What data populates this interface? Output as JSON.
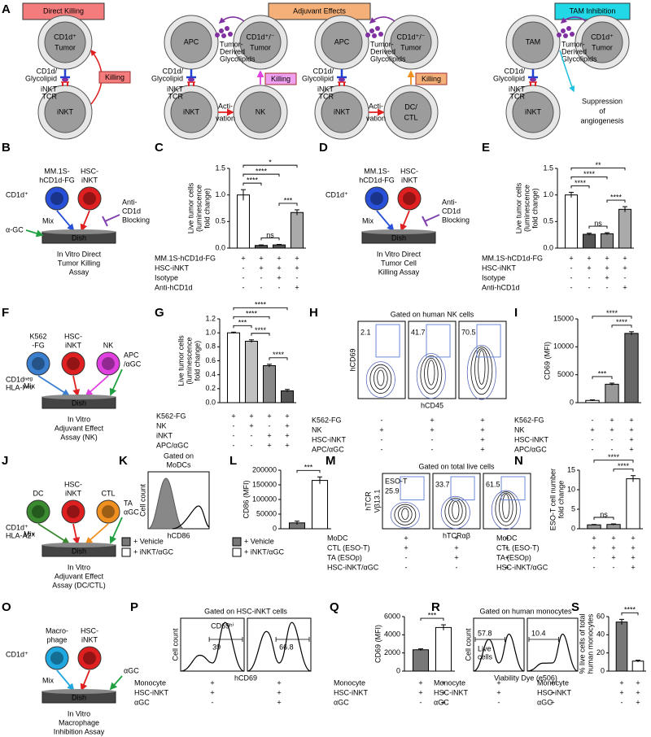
{
  "panel_labels": [
    "A",
    "B",
    "C",
    "D",
    "E",
    "F",
    "G",
    "H",
    "I",
    "J",
    "K",
    "L",
    "M",
    "N",
    "O",
    "P",
    "Q",
    "R",
    "S"
  ],
  "panel_a": {
    "headers": [
      "Direct Killing",
      "Adjuvant Effects",
      "TAM Inhibition"
    ],
    "tumor": [
      "CD1d⁺",
      "Tumor"
    ],
    "tumor_pm": [
      "CD1d⁺/⁻",
      "Tumor"
    ],
    "inkt": "iNKT",
    "apc": "APC",
    "nk": "NK",
    "dc_ctl": [
      "DC/",
      "CTL"
    ],
    "tam": "TAM",
    "cd1d_glycolipid": [
      "CD1d/",
      "Glycolipid"
    ],
    "inkt_tcr": [
      "iNKT",
      "TCR"
    ],
    "killing": "Killing",
    "tumor_derived": [
      "Tumor-",
      "Derived",
      "Glycolipids"
    ],
    "activation": [
      "Acti-",
      "vation"
    ],
    "suppression": [
      "Suppression",
      "of",
      "angiogenesis"
    ]
  },
  "assays": [
    {
      "cells": [
        {
          "label": [
            "MM.1S-",
            "hCD1d-FG"
          ],
          "color": "#2850d8"
        },
        {
          "label": [
            "HSC-",
            "iNKT"
          ],
          "color": "#e02020"
        }
      ],
      "marker": [
        "CD1d⁺"
      ],
      "mix": "Mix",
      "dish": "Dish",
      "stimulus_left": [
        "α-GC"
      ],
      "inhibitor": [
        "Anti-",
        "CD1d",
        "Blocking"
      ],
      "caption": [
        "In Vitro Direct",
        "Tumor Killing",
        "Assay"
      ]
    },
    {
      "cells": [
        {
          "label": [
            "MM.1S-",
            "hCD1d-FG"
          ],
          "color": "#2850d8"
        },
        {
          "label": [
            "HSC-",
            "iNKT"
          ],
          "color": "#e02020"
        }
      ],
      "marker": [
        "CD1d⁺"
      ],
      "mix": "Mix",
      "dish": "Dish",
      "inhibitor": [
        "Anti-",
        "CD1d",
        "Blocking"
      ],
      "caption": [
        "In Vitro Direct",
        "Tumor Cell",
        "Killing Assay"
      ]
    },
    {
      "cells": [
        {
          "label": [
            "K562",
            "-FG"
          ],
          "color": "#3a7fd0"
        },
        {
          "label": [
            "HSC-",
            "iNKT"
          ],
          "color": "#e02020"
        },
        {
          "label": [
            "NK"
          ],
          "color": "#e040e0"
        }
      ],
      "marker": [
        "CD1dⁿᵉᵍ",
        "HLA-Iⁿᵉᵍ"
      ],
      "mix": "Mix",
      "dish": "Dish",
      "stimulus": [
        "APC",
        "/αGC"
      ],
      "caption": [
        "In Vitro",
        "Adjuvant Effect",
        "Assay (NK)"
      ]
    },
    {
      "cells": [
        {
          "label": [
            "DC"
          ],
          "color": "#3a8a30"
        },
        {
          "label": [
            "HSC-",
            "iNKT"
          ],
          "color": "#e02020"
        },
        {
          "label": [
            "CTL"
          ],
          "color": "#f09020"
        }
      ],
      "marker": [
        "CD1d⁺",
        "HLA-A2⁺"
      ],
      "mix": "Mix",
      "dish": "Dish",
      "stimulus": [
        "TA",
        "αGC"
      ],
      "caption": [
        "In Vitro",
        "Adjuvant Effect",
        "Assay (DC/CTL)"
      ]
    },
    {
      "cells": [
        {
          "label": [
            "Macro-",
            "phage"
          ],
          "color": "#20a8e0"
        },
        {
          "label": [
            "HSC-",
            "iNKT"
          ],
          "color": "#e02020"
        }
      ],
      "marker": [
        "CD1d⁺"
      ],
      "mix": "Mix",
      "dish": "Dish",
      "stimulus": [
        "αGC"
      ],
      "caption": [
        "In Vitro",
        "Macrophage",
        "Inhibition Assay"
      ]
    }
  ],
  "flow": [
    {
      "title": [
        "Gated on human NK cells"
      ],
      "ylabel": [
        "hCD69"
      ],
      "xlabel": "hCD45",
      "gates": [
        "2.1",
        "41.7",
        "70.5"
      ],
      "gate_color": "#e020e0",
      "conditions": [
        {
          "label": "K562-FG",
          "signs": [
            "-",
            "+",
            "+"
          ]
        },
        {
          "label": "NK",
          "signs": [
            "+",
            "+",
            "+"
          ]
        },
        {
          "label": "HSC-iNKT",
          "signs": [
            "-",
            "-",
            "+"
          ]
        },
        {
          "label": "APC/αGC",
          "signs": [
            "-",
            "-",
            "+"
          ]
        }
      ]
    },
    {
      "title": [
        "Gated on",
        "MoDCs"
      ],
      "ylabel": [
        "Cell count"
      ],
      "xlabel": "hCD86",
      "legend": [
        {
          "name": "+ Vehicle",
          "color": "#777777"
        },
        {
          "name": "+ iNKT/αGC",
          "color": "#ffffff"
        }
      ]
    },
    {
      "title": [
        "Gated on total live cells"
      ],
      "ylabel": [
        "hTCR",
        "Vβ13.1"
      ],
      "xlabel": "hTCRαβ",
      "gate_label": [
        "ESO-T"
      ],
      "gates": [
        "25.9",
        "33.7",
        "61.5"
      ],
      "gate_color": "#d07010",
      "conditions": [
        {
          "label": "MoDC",
          "signs": [
            "+",
            "+",
            "+"
          ]
        },
        {
          "label": "CTL (ESO-T)",
          "signs": [
            "+",
            "+",
            "+"
          ]
        },
        {
          "label": "TA (ESOp)",
          "signs": [
            "-",
            "+",
            "+"
          ]
        },
        {
          "label": "HSC-iNKT/αGC",
          "signs": [
            "-",
            "-",
            "+"
          ]
        }
      ]
    },
    {
      "title": [
        "Gated on HSC-iNKT cells"
      ],
      "ylabel": [
        "Cell count"
      ],
      "xlabel": "hCD69",
      "gate_label": [
        "CD69ʰⁱ"
      ],
      "gates": [
        "39",
        "66.8"
      ],
      "gate_color": "#e02020",
      "conditions": [
        {
          "label": "Monocyte",
          "signs": [
            "+",
            "+"
          ]
        },
        {
          "label": "HSC-iNKT",
          "signs": [
            "+",
            "+"
          ]
        },
        {
          "label": "αGC",
          "signs": [
            "-",
            "+"
          ]
        }
      ]
    },
    {
      "title": [
        "Gated on human monocytes"
      ],
      "ylabel": [
        "Cell count"
      ],
      "xlabel": "Viability Dye (e506)",
      "gate_label": [
        "Live",
        "cells"
      ],
      "gates": [
        "57.8",
        "10.4"
      ],
      "gate_color": "#1a9ad8",
      "conditions": [
        {
          "label": "Monocyte",
          "signs": [
            "+",
            "+"
          ]
        },
        {
          "label": "HSC-iNKT",
          "signs": [
            "+",
            "+"
          ]
        },
        {
          "label": "αGC",
          "signs": [
            "-",
            "+"
          ]
        }
      ]
    }
  ],
  "chart_data": [
    {
      "type": "bar",
      "ylabel": [
        "Live tumor cells",
        "(luminescence",
        "fold change)"
      ],
      "values": [
        1.0,
        0.05,
        0.06,
        0.67
      ],
      "errors": [
        0.1,
        0.01,
        0.01,
        0.05
      ],
      "colors": [
        "#ffffff",
        "#555555",
        "#555555",
        "#aaaaaa"
      ],
      "ylim": [
        0,
        1.5
      ],
      "yticks": [
        {
          "value": 0,
          "label": "0.0"
        },
        0.5,
        {
          "value": 1,
          "label": "1.0"
        },
        1.5
      ],
      "brackets": [
        {
          "from": 0,
          "to": 3,
          "label": "*"
        },
        {
          "from": 0,
          "to": 2,
          "label": "****"
        },
        {
          "from": 0,
          "to": 1,
          "label": "****"
        },
        {
          "from": 1,
          "to": 2,
          "label": "ns"
        },
        {
          "from": 2,
          "to": 3,
          "label": "***"
        }
      ],
      "conditions": [
        {
          "label": "MM.1S-hCD1d-FG",
          "signs": [
            "+",
            "+",
            "+",
            "+"
          ]
        },
        {
          "label": "HSC-iNKT",
          "signs": [
            "-",
            "+",
            "+",
            "+"
          ]
        },
        {
          "label": "Isotype",
          "signs": [
            "-",
            "-",
            "+",
            "-"
          ]
        },
        {
          "label": "Anti-hCD1d",
          "signs": [
            "-",
            "-",
            "-",
            "+"
          ]
        }
      ]
    },
    {
      "type": "bar",
      "ylabel": [
        "Live tumor cells",
        "(luminescence",
        "fold change)"
      ],
      "values": [
        1.0,
        0.26,
        0.27,
        0.73
      ],
      "errors": [
        0.05,
        0.02,
        0.02,
        0.05
      ],
      "colors": [
        "#ffffff",
        "#555555",
        "#888888",
        "#aaaaaa"
      ],
      "ylim": [
        0,
        1.5
      ],
      "yticks": [
        {
          "value": 0,
          "label": "0.0"
        },
        0.5,
        {
          "value": 1,
          "label": "1.0"
        },
        1.5
      ],
      "brackets": [
        {
          "from": 0,
          "to": 3,
          "label": "**"
        },
        {
          "from": 0,
          "to": 2,
          "label": "****"
        },
        {
          "from": 0,
          "to": 1,
          "label": "****"
        },
        {
          "from": 1,
          "to": 2,
          "label": "ns"
        },
        {
          "from": 2,
          "to": 3,
          "label": "****"
        }
      ],
      "conditions": [
        {
          "label": "MM.1S-hCD1d-FG",
          "signs": [
            "+",
            "+",
            "+",
            "+"
          ]
        },
        {
          "label": "HSC-iNKT",
          "signs": [
            "-",
            "+",
            "+",
            "+"
          ]
        },
        {
          "label": "Isotype",
          "signs": [
            "-",
            "-",
            "+",
            "-"
          ]
        },
        {
          "label": "Anti-hCD1d",
          "signs": [
            "-",
            "-",
            "-",
            "+"
          ]
        }
      ]
    },
    {
      "type": "bar",
      "ylabel": [
        "Live tumor cells",
        "(luminescence",
        "fold change)"
      ],
      "values": [
        1.0,
        0.88,
        0.53,
        0.17
      ],
      "errors": [
        0.01,
        0.02,
        0.02,
        0.02
      ],
      "colors": [
        "#ffffff",
        "#c0c0c0",
        "#888888",
        "#555555"
      ],
      "ylim": [
        0,
        1.2
      ],
      "yticks": [
        {
          "value": 0,
          "label": "0.0"
        },
        0.2,
        0.4,
        0.6,
        0.8,
        {
          "value": 1,
          "label": "1.0"
        },
        1.2
      ],
      "brackets": [
        {
          "from": 0,
          "to": 3,
          "label": "****"
        },
        {
          "from": 0,
          "to": 2,
          "label": "****"
        },
        {
          "from": 0,
          "to": 1,
          "label": "***"
        },
        {
          "from": 1,
          "to": 2,
          "label": "****"
        },
        {
          "from": 2,
          "to": 3,
          "label": "****"
        }
      ],
      "conditions": [
        {
          "label": "K562-FG",
          "signs": [
            "+",
            "+",
            "+",
            "+"
          ]
        },
        {
          "label": "NK",
          "signs": [
            "-",
            "+",
            "-",
            "+"
          ]
        },
        {
          "label": "iNKT",
          "signs": [
            "-",
            "-",
            "+",
            "+"
          ]
        },
        {
          "label": "APC/αGC",
          "signs": [
            "-",
            "-",
            "+",
            "+"
          ]
        }
      ]
    },
    {
      "type": "bar",
      "ylabel": [
        "CD69 (MFI)"
      ],
      "values": [
        400,
        3300,
        12400
      ],
      "errors": [
        100,
        200,
        300
      ],
      "colors": [
        "#ffffff",
        "#999999",
        "#666666"
      ],
      "ylim": [
        0,
        15000
      ],
      "yticks": [
        0,
        5000,
        10000,
        15000
      ],
      "brackets": [
        {
          "from": 0,
          "to": 2,
          "label": "****"
        },
        {
          "from": 0,
          "to": 1,
          "label": "***"
        },
        {
          "from": 1,
          "to": 2,
          "label": "****"
        }
      ],
      "conditions": [
        {
          "label": "K562-FG",
          "signs": [
            "-",
            "+",
            "+"
          ]
        },
        {
          "label": "NK",
          "signs": [
            "+",
            "+",
            "+"
          ]
        },
        {
          "label": "HSC-iNKT",
          "signs": [
            "-",
            "-",
            "+"
          ]
        },
        {
          "label": "APC/αGC",
          "signs": [
            "-",
            "-",
            "+"
          ]
        }
      ]
    },
    {
      "type": "bar",
      "ylabel": [
        "CD86 (MFI)"
      ],
      "values": [
        20000,
        165000
      ],
      "errors": [
        6000,
        12000
      ],
      "colors": [
        "#777777",
        "#ffffff"
      ],
      "ylim": [
        0,
        200000
      ],
      "yticks": [
        0,
        50000,
        100000,
        150000,
        200000
      ],
      "brackets": [
        {
          "from": 0,
          "to": 1,
          "label": "***"
        }
      ],
      "legend": [
        {
          "name": "+ Vehicle",
          "color": "#777777"
        },
        {
          "name": "+ iNKT/αGC",
          "color": "#ffffff"
        }
      ]
    },
    {
      "type": "bar",
      "ylabel": [
        "ESO-T cell number",
        "fold change"
      ],
      "values": [
        1.0,
        1.1,
        12.8
      ],
      "errors": [
        0.1,
        0.15,
        0.8
      ],
      "colors": [
        "#999999",
        "#999999",
        "#ffffff"
      ],
      "ylim": [
        0,
        15
      ],
      "yticks": [
        0,
        5,
        10,
        15
      ],
      "brackets": [
        {
          "from": 0,
          "to": 2,
          "label": "****"
        },
        {
          "from": 0,
          "to": 1,
          "label": "ns"
        },
        {
          "from": 1,
          "to": 2,
          "label": "****"
        }
      ],
      "conditions": [
        {
          "label": "MoDC",
          "signs": [
            "+",
            "+",
            "+"
          ]
        },
        {
          "label": "CTL (ESO-T)",
          "signs": [
            "+",
            "+",
            "+"
          ]
        },
        {
          "label": "TA (ESOp)",
          "signs": [
            "-",
            "+",
            "+"
          ]
        },
        {
          "label": "HSC-iNKT/αGC",
          "signs": [
            "-",
            "-",
            "+"
          ]
        }
      ]
    },
    {
      "type": "bar",
      "ylabel": [
        "CD69 (MFI)"
      ],
      "values": [
        2350,
        4800
      ],
      "errors": [
        100,
        300
      ],
      "colors": [
        "#777777",
        "#ffffff"
      ],
      "ylim": [
        0,
        6000
      ],
      "yticks": [
        0,
        2000,
        4000,
        6000
      ],
      "brackets": [
        {
          "from": 0,
          "to": 1,
          "label": "***"
        }
      ],
      "conditions": [
        {
          "label": "Monocyte",
          "signs": [
            "+",
            "+"
          ]
        },
        {
          "label": "HSC-iNKT",
          "signs": [
            "+",
            "+"
          ]
        },
        {
          "label": "αGC",
          "signs": [
            "-",
            "+"
          ]
        }
      ]
    },
    {
      "type": "bar",
      "ylabel": [
        "% live cells of total",
        "human monocytes"
      ],
      "values": [
        54,
        11
      ],
      "errors": [
        3,
        1
      ],
      "colors": [
        "#777777",
        "#ffffff"
      ],
      "ylim": [
        0,
        60
      ],
      "yticks": [
        0,
        20,
        40,
        60
      ],
      "brackets": [
        {
          "from": 0,
          "to": 1,
          "label": "****"
        }
      ],
      "conditions": [
        {
          "label": "Monocyte",
          "signs": [
            "+",
            "+"
          ]
        },
        {
          "label": "HSC-iNKT",
          "signs": [
            "+",
            "+"
          ]
        },
        {
          "label": "αGC",
          "signs": [
            "-",
            "+"
          ]
        }
      ]
    }
  ]
}
